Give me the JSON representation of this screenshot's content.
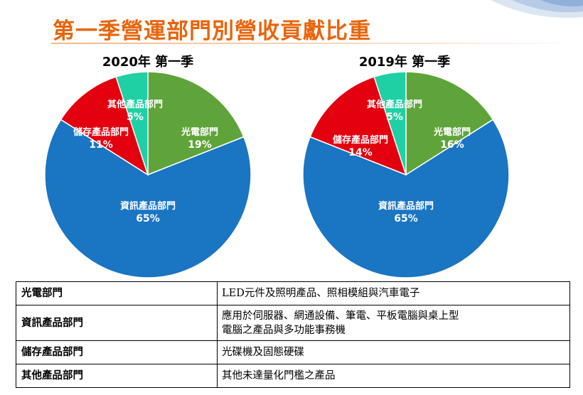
{
  "page": {
    "title": "第一季營運部門別營收貢獻比重"
  },
  "colors": {
    "title": "#e8650c",
    "光電部門": "#5fa43a",
    "資訊產品部門": "#1a75c3",
    "儲存產品部門": "#e3000f",
    "其他產品部門": "#1fd0a4"
  },
  "chart_data": [
    {
      "type": "pie",
      "title": "2020年 第一季",
      "slices": [
        {
          "label": "光電部門",
          "value": 19,
          "value_label": "19%"
        },
        {
          "label": "資訊產品部門",
          "value": 65,
          "value_label": "65%"
        },
        {
          "label": "儲存產品部門",
          "value": 11,
          "value_label": "11%"
        },
        {
          "label": "其他產品部門",
          "value": 5,
          "value_label": "5%"
        }
      ]
    },
    {
      "type": "pie",
      "title": "2019年 第一季",
      "slices": [
        {
          "label": "光電部門",
          "value": 16,
          "value_label": "16%"
        },
        {
          "label": "資訊產品部門",
          "value": 65,
          "value_label": "65%"
        },
        {
          "label": "儲存產品部門",
          "value": 14,
          "value_label": "14%"
        },
        {
          "label": "其他產品部門",
          "value": 5,
          "value_label": "5%"
        }
      ]
    }
  ],
  "table": {
    "rows": [
      {
        "dept": "光電部門",
        "desc": [
          "LED元件及照明產品、照相模組與汽車電子"
        ]
      },
      {
        "dept": "資訊產品部門",
        "desc": [
          "應用於伺服器、網通設備、筆電、平板電腦與桌上型",
          "電腦之產品與多功能事務機"
        ]
      },
      {
        "dept": "儲存產品部門",
        "desc": [
          "光碟機及固態硬碟"
        ]
      },
      {
        "dept": "其他產品部門",
        "desc": [
          "其他未達量化門檻之產品"
        ]
      }
    ]
  }
}
